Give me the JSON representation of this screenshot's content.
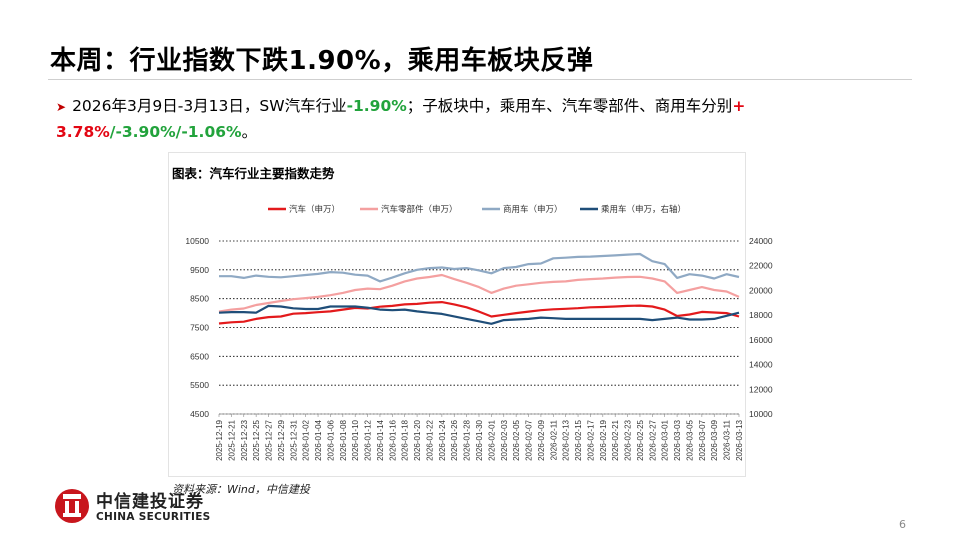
{
  "slide": {
    "title": "本周：行业指数下跌1.90%，乘用车板块反弹",
    "bullet": {
      "p1": "2026年3月9日-3月13日，SW汽车行业",
      "v1": "-1.90%",
      "p2": "；子板块中，乘用车、汽车零部件、商用车分别",
      "v2": "+ 3.78%",
      "s1": "/",
      "v3": "-3.90%",
      "s2": "/",
      "v4": "-1.06%",
      "end": "。"
    },
    "chart_caption": "图表：汽车行业主要指数走势",
    "source": "资料来源：Wind，中信建投",
    "page_number": "6",
    "logo_cn": "中信建投证券",
    "logo_en": "CHINA SECURITIES"
  },
  "colors": {
    "auto": "#e31a1c",
    "parts": "#f4a0a0",
    "commercial": "#8fa9c4",
    "passenger": "#1f4e79",
    "highlight_red": "#e30613",
    "highlight_green": "#22a33c"
  },
  "chart_data": {
    "type": "line",
    "x": [
      "2025-12-19",
      "2025-12-21",
      "2025-12-23",
      "2025-12-25",
      "2025-12-27",
      "2025-12-29",
      "2025-12-31",
      "2026-01-02",
      "2026-01-04",
      "2026-01-06",
      "2026-01-08",
      "2026-01-10",
      "2026-01-12",
      "2026-01-14",
      "2026-01-16",
      "2026-01-18",
      "2026-01-20",
      "2026-01-22",
      "2026-01-24",
      "2026-01-26",
      "2026-01-28",
      "2026-01-30",
      "2026-02-01",
      "2026-02-03",
      "2026-02-05",
      "2026-02-07",
      "2026-02-09",
      "2026-02-11",
      "2026-02-13",
      "2026-02-15",
      "2026-02-17",
      "2026-02-19",
      "2026-02-21",
      "2026-02-23",
      "2026-02-25",
      "2026-02-27",
      "2026-03-01",
      "2026-03-03",
      "2026-03-05",
      "2026-03-07",
      "2026-03-09",
      "2026-03-11",
      "2026-03-13"
    ],
    "series": [
      {
        "name": "汽车（申万）",
        "axis": "left",
        "color": "#e31a1c",
        "values": [
          7640,
          7680,
          7700,
          7800,
          7860,
          7880,
          7980,
          8000,
          8030,
          8060,
          8120,
          8180,
          8160,
          8220,
          8250,
          8300,
          8320,
          8360,
          8380,
          8300,
          8200,
          8050,
          7880,
          7940,
          8000,
          8050,
          8100,
          8130,
          8150,
          8170,
          8200,
          8210,
          8230,
          8250,
          8260,
          8230,
          8120,
          7900,
          7950,
          8040,
          8020,
          8000,
          7880
        ]
      },
      {
        "name": "汽车零部件（申万）",
        "axis": "left",
        "color": "#f4a0a0",
        "values": [
          8050,
          8120,
          8160,
          8280,
          8350,
          8420,
          8480,
          8520,
          8560,
          8620,
          8700,
          8800,
          8850,
          8830,
          8950,
          9100,
          9200,
          9250,
          9320,
          9180,
          9050,
          8900,
          8700,
          8850,
          8950,
          9000,
          9050,
          9080,
          9100,
          9150,
          9180,
          9200,
          9230,
          9250,
          9260,
          9200,
          9100,
          8700,
          8800,
          8900,
          8800,
          8750,
          8560
        ]
      },
      {
        "name": "商用车（申万）",
        "axis": "left",
        "color": "#8fa9c4",
        "values": [
          9280,
          9280,
          9220,
          9300,
          9260,
          9240,
          9280,
          9320,
          9360,
          9420,
          9400,
          9330,
          9300,
          9100,
          9230,
          9380,
          9500,
          9560,
          9580,
          9530,
          9560,
          9480,
          9380,
          9560,
          9600,
          9700,
          9720,
          9900,
          9920,
          9950,
          9960,
          9980,
          10000,
          10030,
          10050,
          9800,
          9700,
          9220,
          9350,
          9300,
          9200,
          9350,
          9250
        ]
      },
      {
        "name": "乘用车（申万，右轴）",
        "axis": "right",
        "color": "#1f4e79",
        "values": [
          18200,
          18250,
          18250,
          18200,
          18750,
          18700,
          18550,
          18500,
          18500,
          18700,
          18700,
          18700,
          18600,
          18450,
          18400,
          18450,
          18300,
          18200,
          18100,
          17900,
          17700,
          17500,
          17300,
          17600,
          17650,
          17700,
          17800,
          17750,
          17700,
          17700,
          17700,
          17700,
          17700,
          17700,
          17700,
          17600,
          17700,
          17800,
          17650,
          17650,
          17700,
          17950,
          18200
        ]
      }
    ],
    "y_left": {
      "min": 4500,
      "max": 10500,
      "ticks": [
        4500,
        5500,
        6500,
        7500,
        8500,
        9500,
        10500
      ]
    },
    "y_right": {
      "min": 10000,
      "max": 24000,
      "ticks": [
        10000,
        12000,
        14000,
        16000,
        18000,
        20000,
        22000,
        24000
      ]
    },
    "grid": true,
    "legend_position": "top"
  }
}
